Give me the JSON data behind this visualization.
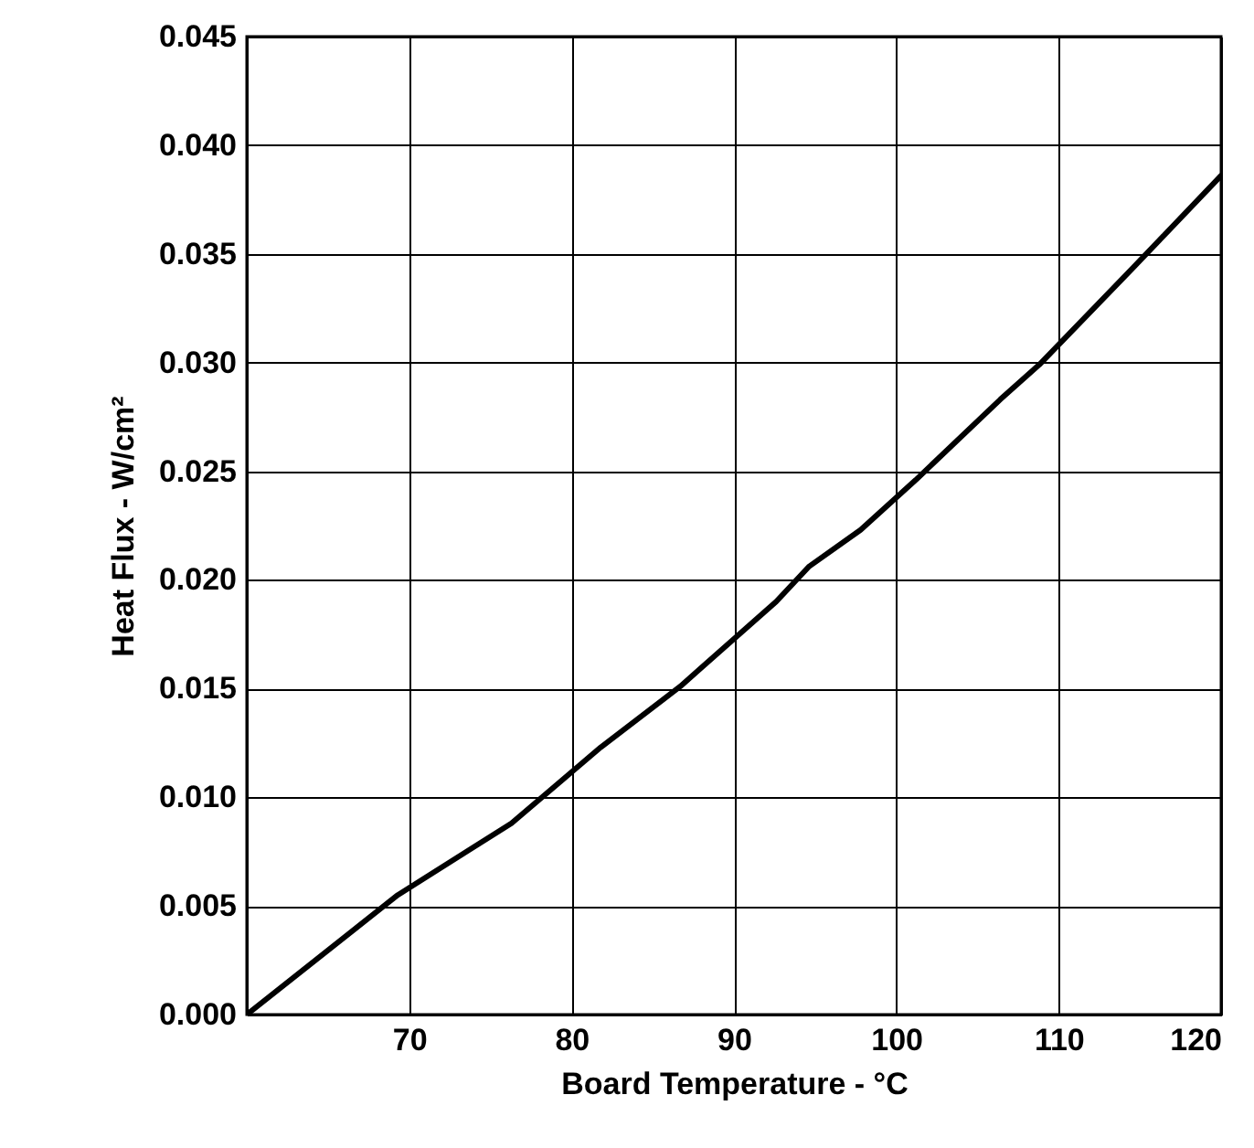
{
  "chart_data": {
    "type": "line",
    "xlabel": "Board Temperature - °C",
    "ylabel": "Heat Flux - W/cm²",
    "x": [
      60,
      69.3,
      76.3,
      81.8,
      86.7,
      92.6,
      94.6,
      97.8,
      101.2,
      106.4,
      108.8,
      114.5,
      120
    ],
    "series": [
      {
        "color": "#000000",
        "values": [
          0,
          0.0055,
          0.0088,
          0.0123,
          0.0151,
          0.019,
          0.0206,
          0.0223,
          0.0246,
          0.0283,
          0.0299,
          0.0343,
          0.0386
        ]
      }
    ],
    "xlim": [
      60,
      120
    ],
    "xticks": [
      70,
      80,
      90,
      100,
      110,
      120
    ],
    "ylim": [
      0,
      0.045
    ],
    "yticks": [
      {
        "value": 0,
        "label": "0.000"
      },
      {
        "value": 0.005,
        "label": "0.005"
      },
      {
        "value": 0.01,
        "label": "0.010"
      },
      {
        "value": 0.015,
        "label": "0.015"
      },
      {
        "value": 0.02,
        "label": "0.020"
      },
      {
        "value": 0.025,
        "label": "0.025"
      },
      {
        "value": 0.03,
        "label": "0.030"
      },
      {
        "value": 0.035,
        "label": "0.035"
      },
      {
        "value": 0.04,
        "label": "0.040"
      },
      {
        "value": 0.045,
        "label": "0.045"
      }
    ],
    "grid": true,
    "marker": "none",
    "line_style": "solid"
  }
}
